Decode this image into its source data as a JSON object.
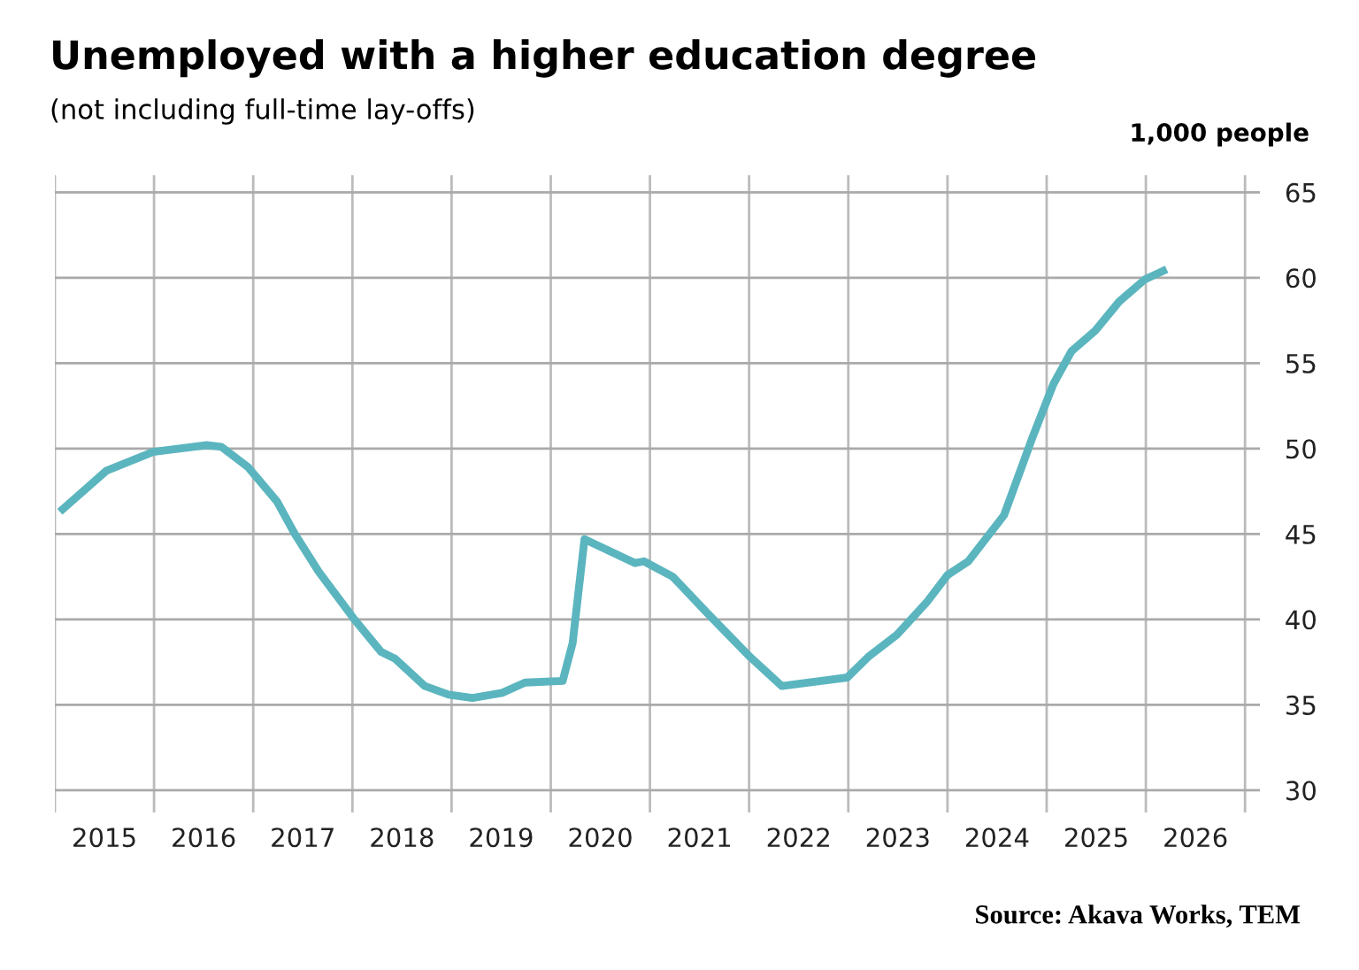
{
  "chart_data": {
    "type": "line",
    "title": "Unemployed with a higher education degree",
    "subtitle": "(not including full-time lay-offs)",
    "ylabel": "1,000 people",
    "annotations": [
      "Source: Akava Works, TEM"
    ],
    "series": [
      {
        "color": "#5bb5bf",
        "x": [
          2015.05,
          2015.52,
          2015.99,
          2016.53,
          2016.68,
          2016.95,
          2017.24,
          2017.42,
          2017.66,
          2018.02,
          2018.29,
          2018.43,
          2018.73,
          2018.97,
          2019.21,
          2019.51,
          2019.74,
          2020.12,
          2020.22,
          2020.34,
          2020.85,
          2020.94,
          2021.23,
          2021.59,
          2022.01,
          2022.33,
          2022.99,
          2023.2,
          2023.49,
          2023.79,
          2024.0,
          2024.21,
          2024.57,
          2024.86,
          2025.07,
          2025.25,
          2025.49,
          2025.73,
          2025.99,
          2026.21
        ],
        "values": [
          46.3,
          48.7,
          49.8,
          50.2,
          50.1,
          48.9,
          46.9,
          45.0,
          42.8,
          40.0,
          38.1,
          37.7,
          36.1,
          35.6,
          35.4,
          35.7,
          36.3,
          36.4,
          38.6,
          44.7,
          43.3,
          43.4,
          42.5,
          40.3,
          37.8,
          36.1,
          36.6,
          37.8,
          39.1,
          41.0,
          42.6,
          43.4,
          46.1,
          50.7,
          53.8,
          55.7,
          56.9,
          58.6,
          59.9,
          60.5
        ]
      }
    ],
    "xlim": [
      2015,
      2027.15
    ],
    "ylim": [
      28.7,
      66
    ],
    "xticks": [
      {
        "value": 2015,
        "label": null
      },
      {
        "value": 2015.5,
        "label": "2015"
      },
      {
        "value": 2016,
        "label": null
      },
      {
        "value": 2016.5,
        "label": "2016"
      },
      {
        "value": 2017,
        "label": null
      },
      {
        "value": 2017.5,
        "label": "2017"
      },
      {
        "value": 2018,
        "label": null
      },
      {
        "value": 2018.5,
        "label": "2018"
      },
      {
        "value": 2019,
        "label": null
      },
      {
        "value": 2019.5,
        "label": "2019"
      },
      {
        "value": 2020,
        "label": null
      },
      {
        "value": 2020.5,
        "label": "2020"
      },
      {
        "value": 2021,
        "label": null
      },
      {
        "value": 2021.5,
        "label": "2021"
      },
      {
        "value": 2022,
        "label": null
      },
      {
        "value": 2022.5,
        "label": "2022"
      },
      {
        "value": 2023,
        "label": null
      },
      {
        "value": 2023.5,
        "label": "2023"
      },
      {
        "value": 2024,
        "label": null
      },
      {
        "value": 2024.5,
        "label": "2024"
      },
      {
        "value": 2025,
        "label": null
      },
      {
        "value": 2025.5,
        "label": "2025"
      },
      {
        "value": 2026,
        "label": null
      },
      {
        "value": 2026.5,
        "label": "2026"
      },
      {
        "value": 2027,
        "label": null
      }
    ],
    "yticks": [
      30,
      35,
      40,
      45,
      50,
      55,
      60,
      65
    ],
    "grid": true,
    "line_style": "solid",
    "marker": "none"
  }
}
